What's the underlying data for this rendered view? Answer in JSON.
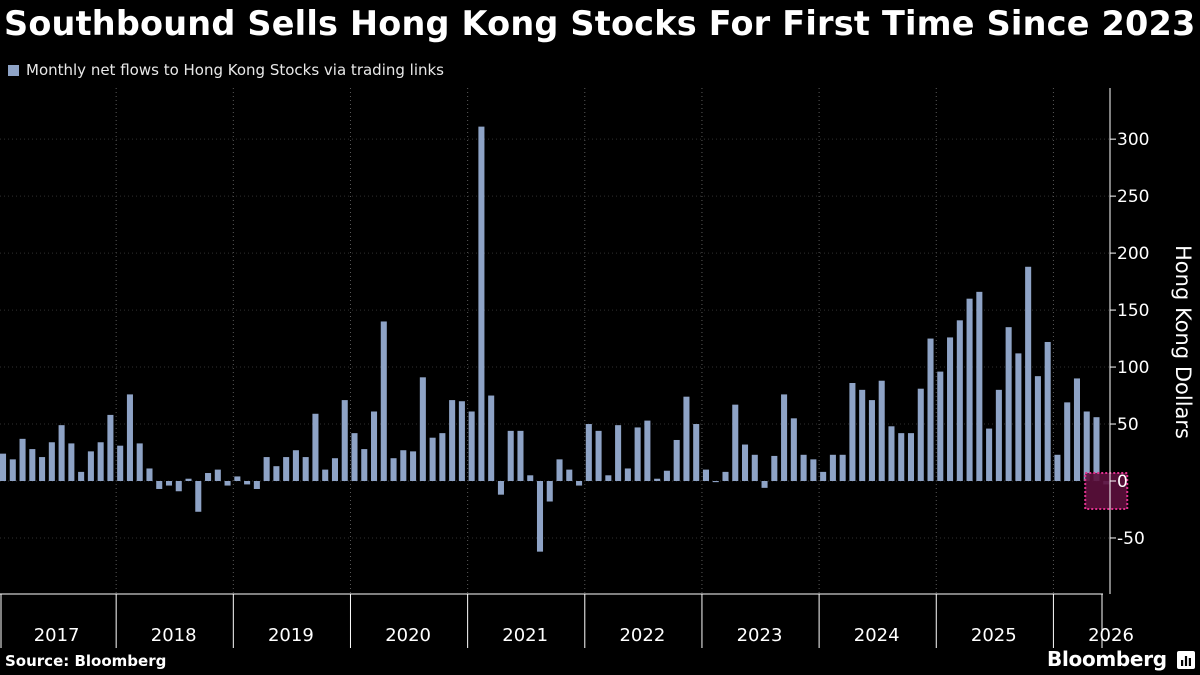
{
  "header": {
    "title": "Southbound Sells Hong Kong Stocks For First Time Since 2023"
  },
  "footer": {
    "source": "Source: Bloomberg",
    "brand": "Bloomberg"
  },
  "colors": {
    "background": "#000000",
    "bar": "#8ea3c6",
    "gridline": "#5a5a5a",
    "highlight_fill": "#5c0f3c",
    "highlight_border": "#e0338f",
    "text": "#ffffff"
  },
  "icons": {
    "brand": "bloomberg-terminal-icon"
  },
  "chart_data": {
    "type": "bar",
    "title": "Southbound Sells Hong Kong Stocks For First Time Since 2023",
    "ylabel": "Hong Kong Dollars",
    "xlabel": "",
    "ylim": [
      -100,
      345
    ],
    "yticks": [
      -50,
      0,
      50,
      100,
      150,
      200,
      250,
      300
    ],
    "ytick_labels": [
      "-50",
      "0",
      "50",
      "100",
      "150",
      "200",
      "250",
      "300"
    ],
    "grid": "vertical dotted at year boundaries",
    "legend_position": "top-left",
    "year_labels": [
      "2017",
      "2018",
      "2019",
      "2020",
      "2021",
      "2022",
      "2023",
      "2024",
      "2025",
      "2026"
    ],
    "series": [
      {
        "name": "Monthly net flows to Hong Kong Stocks via trading links",
        "start": "2017-01",
        "values": [
          24,
          19,
          37,
          28,
          21,
          34,
          49,
          33,
          8,
          26,
          34,
          58,
          31,
          76,
          33,
          11,
          -7,
          -4,
          -9,
          2,
          -27,
          7,
          10,
          -4,
          4,
          -3,
          -7,
          21,
          13,
          21,
          27,
          21,
          59,
          10,
          20,
          71,
          42,
          28,
          61,
          140,
          20,
          27,
          26,
          91,
          38,
          42,
          71,
          70,
          61,
          311,
          75,
          -12,
          44,
          44,
          5,
          -62,
          -18,
          19,
          10,
          -4,
          50,
          44,
          5,
          49,
          11,
          47,
          53,
          2,
          9,
          36,
          74,
          50,
          10,
          -1,
          8,
          67,
          32,
          23,
          -6,
          22,
          76,
          55,
          23,
          19,
          8,
          23,
          23,
          86,
          80,
          71,
          88,
          48,
          42,
          42,
          81,
          125,
          96,
          126,
          141,
          160,
          166,
          46,
          80,
          135,
          112,
          188,
          92,
          122,
          23,
          69,
          90,
          61,
          56,
          -3
        ]
      }
    ],
    "annotation": "highlighted most recent month (net selling)"
  }
}
